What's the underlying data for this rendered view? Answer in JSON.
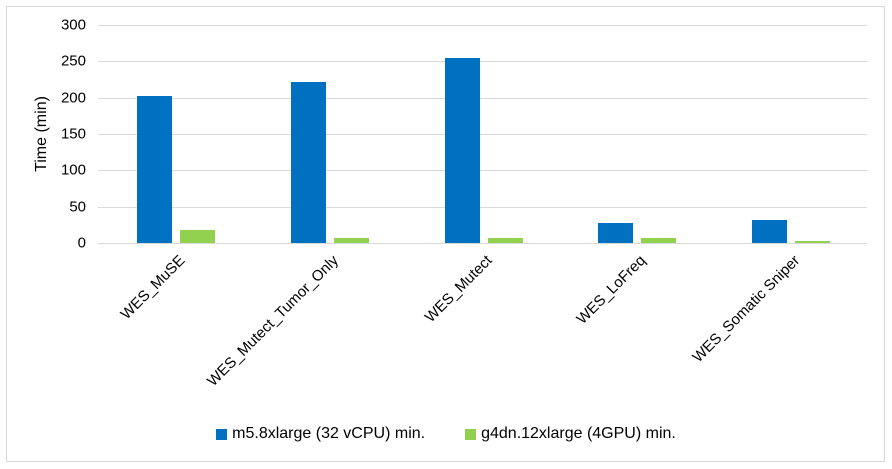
{
  "chart_data": {
    "type": "bar",
    "title": "",
    "xlabel": "",
    "ylabel": "Time (min)",
    "ylim": [
      0,
      300
    ],
    "yticks": [
      0,
      50,
      100,
      150,
      200,
      250,
      300
    ],
    "grid": true,
    "legend_position": "bottom",
    "categories": [
      "WES_MuSE",
      "WES_Mutect_Tumor_Only",
      "WES_Mutect",
      "WES_LoFreq",
      "WES_Somatic Sniper"
    ],
    "series": [
      {
        "name": "m5.8xlarge (32 vCPU) min.",
        "color": "#0070c0",
        "values": [
          202,
          222,
          254,
          28,
          31
        ]
      },
      {
        "name": "g4dn.12xlarge (4GPU) min.",
        "color": "#92d050",
        "values": [
          18,
          7,
          7,
          7,
          3
        ]
      }
    ]
  },
  "axis": {
    "ylabel": "Time (min)",
    "ticks": [
      "0",
      "50",
      "100",
      "150",
      "200",
      "250",
      "300"
    ]
  },
  "legend": {
    "items": [
      {
        "label": "m5.8xlarge (32 vCPU) min.",
        "color": "#0070c0"
      },
      {
        "label": "g4dn.12xlarge (4GPU) min.",
        "color": "#92d050"
      }
    ]
  }
}
